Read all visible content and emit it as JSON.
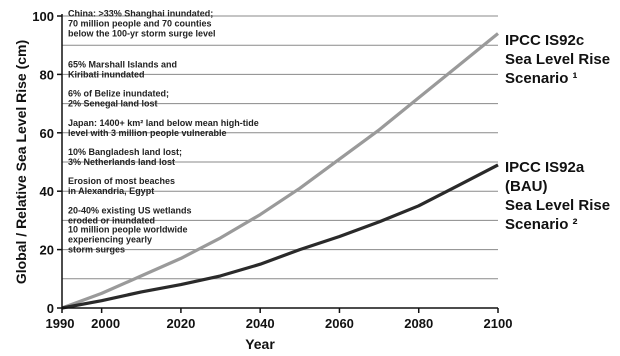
{
  "chart_data": {
    "type": "line",
    "title": "",
    "xlabel": "Year",
    "ylabel": "Global / Relative Sea Level Rise (cm)",
    "xlim": [
      1990,
      2100
    ],
    "ylim": [
      0,
      100
    ],
    "x_ticks": [
      "1990",
      "2000",
      "2020",
      "2040",
      "2060",
      "2080",
      "2100"
    ],
    "x_tick_values": [
      1990,
      2000,
      2020,
      2040,
      2060,
      2080,
      2100
    ],
    "y_ticks": [
      "0",
      "20",
      "40",
      "60",
      "80",
      "100"
    ],
    "y_tick_values": [
      0,
      20,
      40,
      60,
      80,
      100
    ],
    "y_minor_ticks": [
      10,
      30,
      50,
      70,
      90
    ],
    "grid": true,
    "series": [
      {
        "name_lines": [
          "IPCC IS92c",
          "Sea Level Rise",
          "Scenario ¹"
        ],
        "color": "#9a9a9a",
        "x": [
          1990,
          2000,
          2010,
          2020,
          2030,
          2040,
          2050,
          2060,
          2070,
          2080,
          2090,
          2100
        ],
        "y": [
          0,
          5,
          11,
          17,
          24,
          32,
          41,
          51,
          61,
          72,
          83,
          94
        ]
      },
      {
        "name_lines": [
          "IPCC IS92a",
          "(BAU)",
          "Sea Level Rise",
          "Scenario ²"
        ],
        "color": "#2a2a2a",
        "x": [
          1990,
          2000,
          2010,
          2020,
          2030,
          2040,
          2050,
          2060,
          2070,
          2080,
          2090,
          2100
        ],
        "y": [
          0,
          2.5,
          5.5,
          8,
          11,
          15,
          20,
          24.5,
          29.5,
          35,
          42,
          49
        ]
      }
    ],
    "annotations": [
      {
        "lines": [
          "China: >33% Shanghai inundated;",
          "70 million people and 70 counties",
          "below the 100-yr storm surge level"
        ],
        "at_y": 94
      },
      {
        "lines": [
          "65% Marshall Islands and",
          "Kiribati inundated"
        ],
        "at_y": 80
      },
      {
        "lines": [
          "6% of Belize inundated;",
          "2% Senegal land lost"
        ],
        "at_y": 70
      },
      {
        "lines": [
          "Japan: 1400+ km² land below mean high-tide",
          "level with 3 million people vulnerable"
        ],
        "at_y": 60
      },
      {
        "lines": [
          "10% Bangladesh land lost;",
          "3% Netherlands land lost"
        ],
        "at_y": 50
      },
      {
        "lines": [
          "Erosion of most beaches",
          "in Alexandria, Egypt"
        ],
        "at_y": 40
      },
      {
        "lines": [
          "20-40% existing US wetlands",
          "eroded or inundated"
        ],
        "at_y": 30
      },
      {
        "lines": [
          "10 million people worldwide",
          "experiencing yearly",
          "storm surges"
        ],
        "at_y": 20
      }
    ]
  }
}
